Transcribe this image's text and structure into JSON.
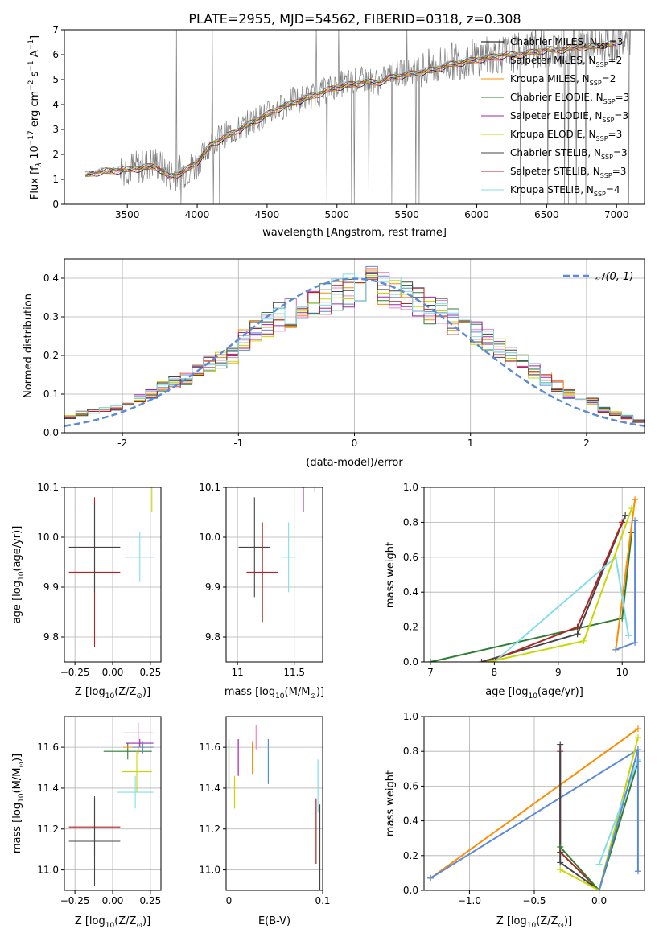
{
  "figure_title": "PLATE=2955, MJD=54562, FIBERID=0318, z=0.308",
  "colors": {
    "s0": "#000000",
    "s1": "#f781bf",
    "s2": "#ff8c00",
    "s3": "#2e7d32",
    "s4": "#9c27b0",
    "s5": "#c6d800",
    "s6": "#444444",
    "s7": "#b22222",
    "s8": "#80deea",
    "gauss": "#5b8bd6",
    "data": "#808080"
  },
  "chart_data": [
    {
      "id": "spectrum",
      "type": "line",
      "ylabel_text": "Flux [f",
      "ylabel_rest": " 10",
      "ylabel_exp": "−17",
      "ylabel_units": " erg cm",
      "xlabel": "wavelength [Angstrom, rest frame]",
      "xlim": [
        3050,
        7200
      ],
      "ylim": [
        0,
        7
      ],
      "xticks": [
        3500,
        4000,
        4500,
        5000,
        5500,
        6000,
        6500,
        7000
      ],
      "yticks": [
        0,
        1,
        2,
        3,
        4,
        5,
        6,
        7
      ],
      "grid": false,
      "legend_position": "upper-right",
      "legend": [
        {
          "prefix": "Chabrier MILES, N",
          "sub": "SSP",
          "suffix": "=3"
        },
        {
          "prefix": "Salpeter MILES, N",
          "sub": "SSP",
          "suffix": "=2"
        },
        {
          "prefix": "Kroupa MILES, N",
          "sub": "SSP",
          "suffix": "=2"
        },
        {
          "prefix": "Chabrier ELODIE, N",
          "sub": "SSP",
          "suffix": "=3"
        },
        {
          "prefix": "Salpeter ELODIE, N",
          "sub": "SSP",
          "suffix": "=3"
        },
        {
          "prefix": "Kroupa ELODIE, N",
          "sub": "SSP",
          "suffix": "=3"
        },
        {
          "prefix": "Chabrier STELIB, N",
          "sub": "SSP",
          "suffix": "=3"
        },
        {
          "prefix": "Salpeter STELIB, N",
          "sub": "SSP",
          "suffix": "=3"
        },
        {
          "prefix": "Kroupa STELIB, N",
          "sub": "SSP",
          "suffix": "=4"
        }
      ],
      "data_x": [
        3200,
        3300,
        3400,
        3500,
        3600,
        3700,
        3800,
        3900,
        4000,
        4100,
        4200,
        4300,
        4400,
        4500,
        4600,
        4700,
        4800,
        4900,
        5000,
        5100,
        5200,
        5300,
        5400,
        5500,
        5600,
        5700,
        5800,
        5900,
        6000,
        6100,
        6200,
        6300,
        6400,
        6500,
        6600,
        6700,
        6800,
        6900,
        7000
      ],
      "data_y": [
        1.2,
        1.35,
        1.4,
        1.45,
        1.5,
        1.7,
        1.2,
        1.3,
        1.6,
        2.5,
        2.8,
        3.0,
        3.4,
        3.6,
        3.9,
        4.2,
        4.3,
        4.5,
        4.8,
        4.9,
        5.0,
        4.9,
        5.2,
        5.3,
        5.4,
        5.5,
        5.7,
        5.8,
        5.9,
        6.0,
        6.0,
        6.1,
        6.2,
        6.2,
        6.3,
        6.3,
        6.4,
        6.4,
        6.5
      ],
      "model_y": [
        1.2,
        1.3,
        1.35,
        1.4,
        1.45,
        1.55,
        1.1,
        1.3,
        1.7,
        2.4,
        2.7,
        3.0,
        3.3,
        3.6,
        3.9,
        4.1,
        4.3,
        4.5,
        4.7,
        4.8,
        4.9,
        4.9,
        5.1,
        5.2,
        5.3,
        5.4,
        5.6,
        5.7,
        5.8,
        5.9,
        6.0,
        6.0,
        6.1,
        6.2,
        6.2,
        6.3,
        6.3,
        6.4,
        6.4
      ]
    },
    {
      "id": "residuals",
      "type": "line",
      "xlabel": "(data-model)/error",
      "ylabel": "Normed distribution",
      "xlim": [
        -2.5,
        2.5
      ],
      "ylim": [
        0,
        0.45
      ],
      "xticks": [
        -2,
        -1,
        0,
        1,
        2
      ],
      "yticks": [
        0.0,
        0.1,
        0.2,
        0.3,
        0.4
      ],
      "grid": true,
      "legend_position": "upper-right",
      "legend": [
        {
          "prefix": "𝒩(0, 1)"
        }
      ],
      "hist_bins": [
        -2.5,
        -2.4,
        -2.3,
        -2.2,
        -2.1,
        -2.0,
        -1.9,
        -1.8,
        -1.7,
        -1.6,
        -1.5,
        -1.4,
        -1.3,
        -1.2,
        -1.1,
        -1.0,
        -0.9,
        -0.8,
        -0.7,
        -0.6,
        -0.5,
        -0.4,
        -0.3,
        -0.2,
        -0.1,
        0.0,
        0.1,
        0.2,
        0.3,
        0.4,
        0.5,
        0.6,
        0.7,
        0.8,
        0.9,
        1.0,
        1.1,
        1.2,
        1.3,
        1.4,
        1.5,
        1.6,
        1.7,
        1.8,
        1.9,
        2.0,
        2.1,
        2.2,
        2.3,
        2.4,
        2.5
      ],
      "hist_values": [
        0.04,
        0.05,
        0.055,
        0.06,
        0.065,
        0.07,
        0.09,
        0.1,
        0.12,
        0.13,
        0.14,
        0.16,
        0.18,
        0.19,
        0.2,
        0.24,
        0.27,
        0.28,
        0.3,
        0.31,
        0.33,
        0.34,
        0.35,
        0.36,
        0.37,
        0.38,
        0.39,
        0.37,
        0.36,
        0.35,
        0.34,
        0.32,
        0.31,
        0.29,
        0.28,
        0.26,
        0.24,
        0.22,
        0.2,
        0.18,
        0.16,
        0.14,
        0.12,
        0.1,
        0.09,
        0.08,
        0.06,
        0.05,
        0.04,
        0.03
      ]
    },
    {
      "id": "age_vs_Z",
      "type": "scatter",
      "xlabel": "Z [log",
      "xlabel_sub": "10",
      "xlabel_rest": "(Z/Z",
      "xlabel_sun": "⊙",
      "xlabel_end": ")]",
      "ylabel": "age  [log",
      "ylabel_sub": "10",
      "ylabel_rest": "(age/yr)]",
      "xlim": [
        -0.32,
        0.32
      ],
      "ylim": [
        9.75,
        10.1
      ],
      "xticks": [
        -0.25,
        0.0,
        0.25
      ],
      "xtick_labels": [
        "−0.25",
        "0.00",
        "0.25"
      ],
      "yticks": [
        9.8,
        9.9,
        10.0,
        10.1
      ],
      "grid": true
    },
    {
      "id": "age_vs_mass",
      "type": "scatter",
      "xlabel": "mass [log",
      "xlabel_sub": "10",
      "xlabel_rest": "(M/M",
      "xlabel_sun": "⊙",
      "xlabel_end": ")]",
      "xlim": [
        10.9,
        11.75
      ],
      "ylim": [
        9.75,
        10.1
      ],
      "xticks": [
        11.0,
        11.5
      ],
      "yticks": [
        9.8,
        9.9,
        10.0,
        10.1
      ],
      "grid": true
    },
    {
      "id": "weight_vs_age",
      "type": "line",
      "xlabel": "age  [log",
      "xlabel_sub": "10",
      "xlabel_rest": "(age/yr)]",
      "ylabel": "mass weight",
      "xlim": [
        6.9,
        10.35
      ],
      "ylim": [
        0,
        1
      ],
      "xticks": [
        7,
        8,
        9,
        10
      ],
      "yticks": [
        0.0,
        0.2,
        0.4,
        0.6,
        0.8,
        1.0
      ],
      "grid": true,
      "series": [
        {
          "color_key": "s3",
          "x": [
            7.0,
            10.0,
            10.15
          ],
          "y": [
            0.0,
            0.25,
            0.74
          ]
        },
        {
          "color_key": "s6",
          "x": [
            7.8,
            9.3,
            10.05
          ],
          "y": [
            0.0,
            0.16,
            0.84
          ]
        },
        {
          "color_key": "s7",
          "x": [
            7.9,
            9.3,
            10.0
          ],
          "y": [
            0.0,
            0.2,
            0.8
          ]
        },
        {
          "color_key": "s2",
          "x": [
            9.9,
            10.2
          ],
          "y": [
            0.07,
            0.93
          ]
        },
        {
          "color_key": "gauss",
          "x": [
            9.9,
            10.2,
            10.2
          ],
          "y": [
            0.07,
            0.11,
            0.81
          ]
        },
        {
          "color_key": "s8",
          "x": [
            8.0,
            9.9,
            10.1
          ],
          "y": [
            0.0,
            0.6,
            0.15
          ]
        },
        {
          "color_key": "s5",
          "x": [
            7.9,
            9.4,
            10.15
          ],
          "y": [
            0.0,
            0.12,
            0.88
          ]
        }
      ]
    },
    {
      "id": "mass_vs_Z",
      "type": "scatter",
      "xlabel": "Z [log",
      "xlabel_sub": "10",
      "xlabel_rest": "(Z/Z",
      "xlabel_sun": "⊙",
      "xlabel_end": ")]",
      "ylabel": "mass [log",
      "ylabel_sub": "10",
      "ylabel_rest": "(M/M",
      "ylabel_sun": "⊙",
      "ylabel_end": ")]",
      "xlim": [
        -0.32,
        0.32
      ],
      "ylim": [
        10.9,
        11.75
      ],
      "xticks": [
        -0.25,
        0.0,
        0.25
      ],
      "xtick_labels": [
        "−0.25",
        "0.00",
        "0.25"
      ],
      "yticks": [
        11.0,
        11.2,
        11.4,
        11.6
      ],
      "grid": true
    },
    {
      "id": "mass_vs_ebv",
      "type": "scatter",
      "xlabel": "E(B-V)",
      "xlim": [
        -0.003,
        0.1
      ],
      "ylim": [
        10.9,
        11.75
      ],
      "xticks": [
        0.0,
        0.1
      ],
      "xtick_labels": [
        "0",
        "0.1"
      ],
      "yticks": [
        11.0,
        11.2,
        11.4,
        11.6
      ],
      "grid": true
    },
    {
      "id": "weight_vs_Z",
      "type": "line",
      "xlabel": "Z [log",
      "xlabel_sub": "10",
      "xlabel_rest": "(Z/Z",
      "xlabel_sun": "⊙",
      "xlabel_end": ")]",
      "ylabel": "mass weight",
      "xlim": [
        -1.35,
        0.35
      ],
      "ylim": [
        0,
        1
      ],
      "xticks": [
        -1.0,
        -0.5,
        0.0
      ],
      "xtick_labels": [
        "−1.0",
        "−0.5",
        "0.0"
      ],
      "yticks": [
        0.0,
        0.2,
        0.4,
        0.6,
        0.8,
        1.0
      ],
      "grid": true,
      "series": [
        {
          "color_key": "s2",
          "x": [
            -1.3,
            0.3
          ],
          "y": [
            0.07,
            0.93
          ]
        },
        {
          "color_key": "gauss",
          "x": [
            -1.3,
            0.3
          ],
          "y": [
            0.07,
            0.81
          ]
        },
        {
          "color_key": "s7",
          "x": [
            -0.3,
            -0.3,
            0.0
          ],
          "y": [
            0.8,
            0.22,
            0.0
          ]
        },
        {
          "color_key": "s6",
          "x": [
            -0.3,
            -0.3,
            0.0
          ],
          "y": [
            0.84,
            0.16,
            0.0
          ]
        },
        {
          "color_key": "s3",
          "x": [
            -0.3,
            0.0,
            0.3
          ],
          "y": [
            0.25,
            0.0,
            0.74
          ]
        },
        {
          "color_key": "s5",
          "x": [
            -0.3,
            0.0,
            0.3
          ],
          "y": [
            0.12,
            0.0,
            0.88
          ]
        },
        {
          "color_key": "s8",
          "x": [
            0.0,
            0.3
          ],
          "y": [
            0.15,
            0.75
          ]
        },
        {
          "color_key": "gauss",
          "x": [
            0.0,
            0.3,
            0.3
          ],
          "y": [
            0.0,
            0.81,
            0.11
          ]
        }
      ]
    }
  ]
}
